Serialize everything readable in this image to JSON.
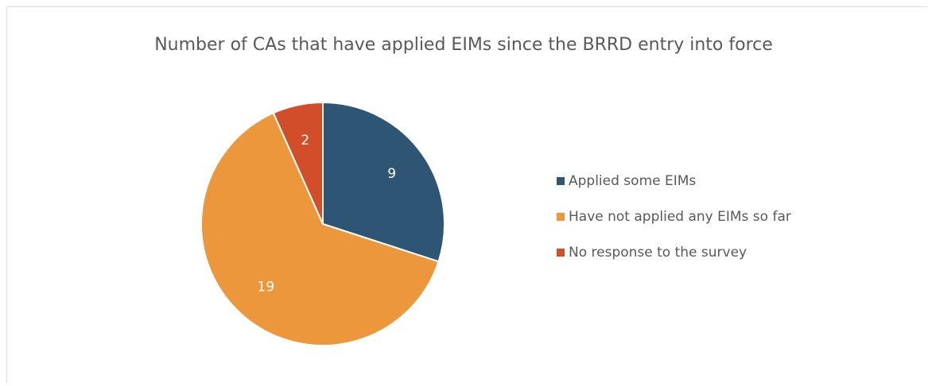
{
  "chart_data": {
    "type": "pie",
    "title": "Number of CAs that have applied EIMs since the BRRD entry into force",
    "categories": [
      "Applied some EIMs",
      "Have not applied any EIMs so far",
      "No response to the survey"
    ],
    "values": [
      9,
      19,
      2
    ],
    "colors": [
      "#2e5573",
      "#ec973c",
      "#d24e2b"
    ],
    "legend": "right"
  }
}
